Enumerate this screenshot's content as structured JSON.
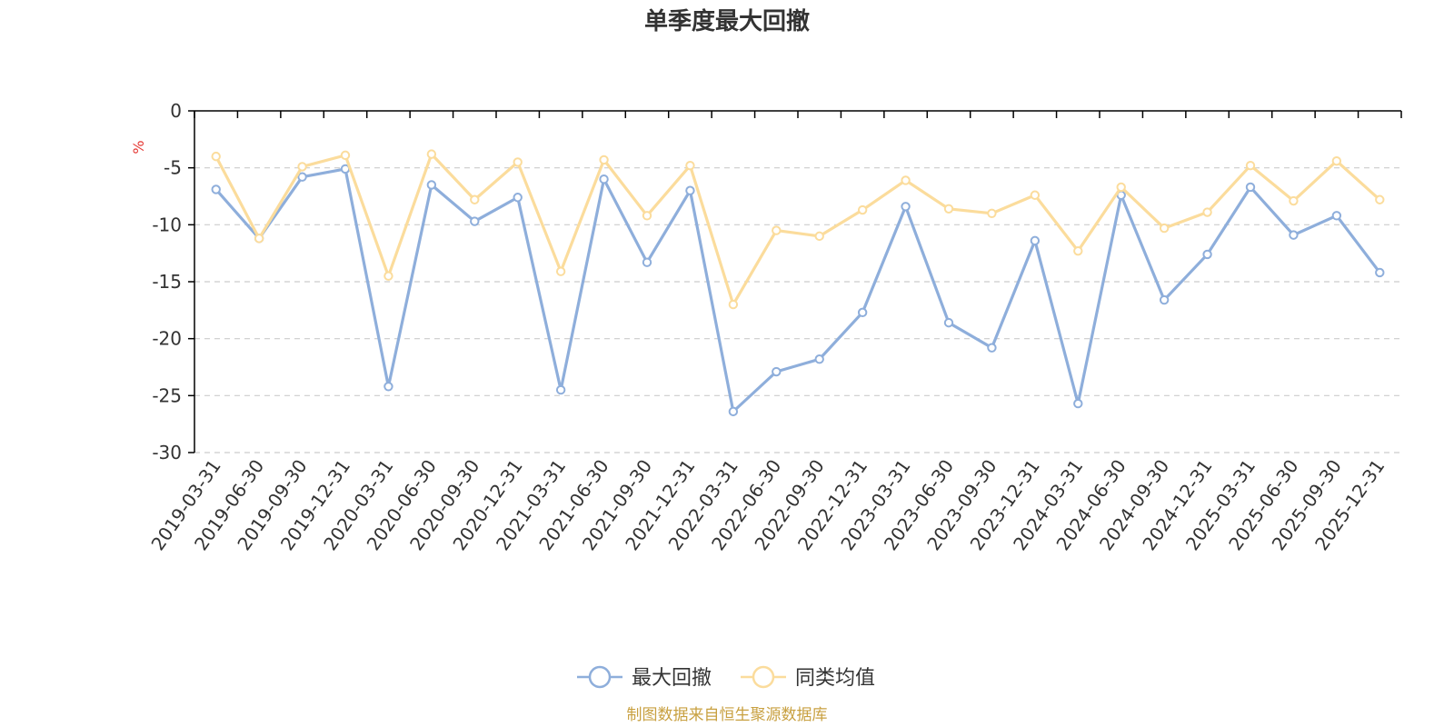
{
  "chart_data": {
    "type": "line",
    "title": "单季度最大回撤",
    "ylabel": "%",
    "ylim": [
      -30,
      0
    ],
    "yticks": [
      0,
      -5,
      -10,
      -15,
      -20,
      -25,
      -30
    ],
    "grid": true,
    "legend_position": "bottom-center",
    "categories": [
      "2019-03-31",
      "2019-06-30",
      "2019-09-30",
      "2019-12-31",
      "2020-03-31",
      "2020-06-30",
      "2020-09-30",
      "2020-12-31",
      "2021-03-31",
      "2021-06-30",
      "2021-09-30",
      "2021-12-31",
      "2022-03-31",
      "2022-06-30",
      "2022-09-30",
      "2022-12-31",
      "2023-03-31",
      "2023-06-30",
      "2023-09-30",
      "2023-12-31",
      "2024-03-31",
      "2024-06-30",
      "2024-09-30",
      "2024-12-31",
      "2025-03-31",
      "2025-06-30",
      "2025-09-30",
      "2025-12-31"
    ],
    "series": [
      {
        "name": "最大回撤",
        "color": "#8eaedb",
        "values": [
          -6.9,
          -11.2,
          -5.8,
          -5.1,
          -24.2,
          -6.5,
          -9.7,
          -7.6,
          -24.5,
          -6.0,
          -13.3,
          -7.0,
          -26.4,
          -22.9,
          -21.8,
          -17.7,
          -8.4,
          -18.6,
          -20.8,
          -11.4,
          -25.7,
          -7.4,
          -16.6,
          -12.6,
          -6.7,
          -10.9,
          -9.2,
          -14.2
        ]
      },
      {
        "name": "同类均值",
        "color": "#fbdc9c",
        "values": [
          -4.0,
          -11.2,
          -4.9,
          -3.9,
          -14.5,
          -3.8,
          -7.8,
          -4.5,
          -14.1,
          -4.3,
          -9.2,
          -4.8,
          -17.0,
          -10.5,
          -11.0,
          -8.7,
          -6.1,
          -8.6,
          -9.0,
          -7.4,
          -12.3,
          -6.7,
          -10.3,
          -8.9,
          -4.8,
          -7.9,
          -4.4,
          -7.8
        ]
      }
    ]
  },
  "source": "制图数据来自恒生聚源数据库",
  "colors": {
    "title": "#333333",
    "unit": "#e53935",
    "source": "#c8a040",
    "grid": "#cccccc"
  }
}
